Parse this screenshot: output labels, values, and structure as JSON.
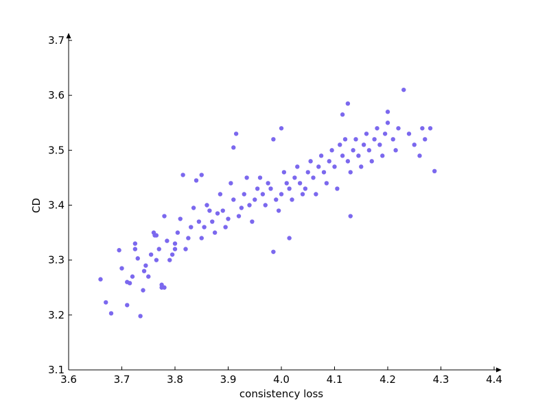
{
  "chart_data": {
    "type": "scatter",
    "xlabel": "consistency loss",
    "ylabel": "CD",
    "xlim": [
      3.6,
      4.4
    ],
    "ylim": [
      3.1,
      3.7
    ],
    "x_ticks": [
      "3.6",
      "3.7",
      "3.8",
      "3.9",
      "4.0",
      "4.1",
      "4.2",
      "4.3",
      "4.4"
    ],
    "y_ticks": [
      "3.1",
      "3.2",
      "3.3",
      "3.4",
      "3.5",
      "3.6",
      "3.7"
    ],
    "grid": false,
    "legend": "none",
    "marker_color": "#7b68ee",
    "points": [
      [
        3.66,
        3.265
      ],
      [
        3.67,
        3.223
      ],
      [
        3.68,
        3.203
      ],
      [
        3.695,
        3.318
      ],
      [
        3.7,
        3.285
      ],
      [
        3.71,
        3.26
      ],
      [
        3.71,
        3.218
      ],
      [
        3.715,
        3.258
      ],
      [
        3.72,
        3.27
      ],
      [
        3.725,
        3.33
      ],
      [
        3.725,
        3.32
      ],
      [
        3.73,
        3.303
      ],
      [
        3.735,
        3.198
      ],
      [
        3.74,
        3.245
      ],
      [
        3.742,
        3.28
      ],
      [
        3.745,
        3.29
      ],
      [
        3.75,
        3.27
      ],
      [
        3.755,
        3.31
      ],
      [
        3.76,
        3.35
      ],
      [
        3.762,
        3.345
      ],
      [
        3.765,
        3.3
      ],
      [
        3.77,
        3.32
      ],
      [
        3.775,
        3.255
      ],
      [
        3.78,
        3.25
      ],
      [
        3.78,
        3.38
      ],
      [
        3.785,
        3.335
      ],
      [
        3.79,
        3.3
      ],
      [
        3.795,
        3.31
      ],
      [
        3.8,
        3.33
      ],
      [
        3.805,
        3.35
      ],
      [
        3.81,
        3.375
      ],
      [
        3.815,
        3.455
      ],
      [
        3.82,
        3.32
      ],
      [
        3.825,
        3.34
      ],
      [
        3.83,
        3.36
      ],
      [
        3.835,
        3.395
      ],
      [
        3.84,
        3.445
      ],
      [
        3.845,
        3.37
      ],
      [
        3.85,
        3.34
      ],
      [
        3.855,
        3.36
      ],
      [
        3.86,
        3.4
      ],
      [
        3.865,
        3.39
      ],
      [
        3.87,
        3.37
      ],
      [
        3.875,
        3.35
      ],
      [
        3.88,
        3.385
      ],
      [
        3.885,
        3.42
      ],
      [
        3.89,
        3.39
      ],
      [
        3.895,
        3.36
      ],
      [
        3.9,
        3.375
      ],
      [
        3.905,
        3.44
      ],
      [
        3.91,
        3.41
      ],
      [
        3.915,
        3.53
      ],
      [
        3.92,
        3.38
      ],
      [
        3.925,
        3.395
      ],
      [
        3.93,
        3.42
      ],
      [
        3.935,
        3.45
      ],
      [
        3.94,
        3.4
      ],
      [
        3.945,
        3.37
      ],
      [
        3.95,
        3.41
      ],
      [
        3.955,
        3.43
      ],
      [
        3.96,
        3.45
      ],
      [
        3.965,
        3.42
      ],
      [
        3.97,
        3.4
      ],
      [
        3.975,
        3.44
      ],
      [
        3.98,
        3.43
      ],
      [
        3.985,
        3.52
      ],
      [
        3.99,
        3.41
      ],
      [
        3.995,
        3.39
      ],
      [
        4.0,
        3.42
      ],
      [
        4.005,
        3.46
      ],
      [
        4.01,
        3.44
      ],
      [
        4.015,
        3.43
      ],
      [
        4.02,
        3.41
      ],
      [
        4.025,
        3.45
      ],
      [
        4.03,
        3.47
      ],
      [
        4.035,
        3.44
      ],
      [
        4.04,
        3.42
      ],
      [
        4.045,
        3.43
      ],
      [
        4.05,
        3.46
      ],
      [
        4.055,
        3.48
      ],
      [
        4.06,
        3.45
      ],
      [
        4.065,
        3.42
      ],
      [
        4.07,
        3.47
      ],
      [
        4.075,
        3.49
      ],
      [
        4.08,
        3.46
      ],
      [
        4.085,
        3.44
      ],
      [
        4.09,
        3.48
      ],
      [
        4.095,
        3.5
      ],
      [
        4.1,
        3.47
      ],
      [
        4.105,
        3.43
      ],
      [
        4.11,
        3.51
      ],
      [
        4.115,
        3.49
      ],
      [
        4.12,
        3.52
      ],
      [
        4.125,
        3.48
      ],
      [
        4.13,
        3.46
      ],
      [
        4.135,
        3.5
      ],
      [
        4.14,
        3.52
      ],
      [
        4.145,
        3.49
      ],
      [
        4.15,
        3.47
      ],
      [
        4.155,
        3.51
      ],
      [
        4.16,
        3.53
      ],
      [
        4.165,
        3.5
      ],
      [
        4.17,
        3.48
      ],
      [
        4.175,
        3.52
      ],
      [
        4.18,
        3.54
      ],
      [
        4.185,
        3.51
      ],
      [
        4.19,
        3.49
      ],
      [
        4.195,
        3.53
      ],
      [
        4.2,
        3.57
      ],
      [
        4.21,
        3.52
      ],
      [
        4.215,
        3.5
      ],
      [
        4.22,
        3.54
      ],
      [
        4.23,
        3.61
      ],
      [
        4.24,
        3.53
      ],
      [
        4.25,
        3.51
      ],
      [
        4.26,
        3.49
      ],
      [
        4.265,
        3.54
      ],
      [
        4.27,
        3.52
      ],
      [
        4.28,
        3.54
      ],
      [
        4.288,
        3.462
      ],
      [
        4.125,
        3.585
      ],
      [
        4.115,
        3.565
      ],
      [
        4.0,
        3.54
      ],
      [
        3.91,
        3.505
      ],
      [
        3.85,
        3.455
      ],
      [
        3.765,
        3.345
      ],
      [
        3.775,
        3.25
      ],
      [
        4.015,
        3.34
      ],
      [
        4.13,
        3.38
      ],
      [
        3.985,
        3.315
      ],
      [
        4.2,
        3.55
      ],
      [
        3.8,
        3.32
      ]
    ]
  }
}
